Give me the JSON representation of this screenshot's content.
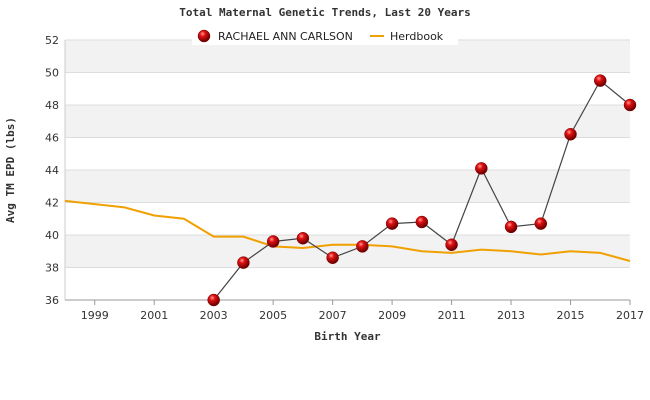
{
  "chart_data": {
    "type": "line",
    "title": "Total Maternal Genetic Trends, Last 20 Years",
    "xlabel": "Birth Year",
    "ylabel": "Avg TM EPD (lbs)",
    "xlim": [
      1998,
      2017
    ],
    "ylim": [
      36,
      52
    ],
    "x_ticks": [
      1999,
      2001,
      2003,
      2005,
      2007,
      2009,
      2011,
      2013,
      2015,
      2017
    ],
    "y_ticks": [
      36,
      38,
      40,
      42,
      44,
      46,
      48,
      50,
      52
    ],
    "grid": true,
    "legend_position": "top",
    "series": [
      {
        "name": "RACHAEL ANN CARLSON",
        "color": "#cc0000",
        "line_color": "#444444",
        "marker": "sphere",
        "x": [
          2003,
          2004,
          2005,
          2006,
          2007,
          2008,
          2009,
          2010,
          2011,
          2012,
          2013,
          2014,
          2015,
          2016,
          2017
        ],
        "y": [
          36.0,
          38.3,
          39.6,
          39.8,
          38.6,
          39.3,
          40.7,
          40.8,
          39.4,
          44.1,
          40.5,
          40.7,
          46.2,
          49.5,
          48.0
        ]
      },
      {
        "name": "Herdbook",
        "color": "#f0a000",
        "marker": "none",
        "x": [
          1998,
          1999,
          2000,
          2001,
          2002,
          2003,
          2004,
          2005,
          2006,
          2007,
          2008,
          2009,
          2010,
          2011,
          2012,
          2013,
          2014,
          2015,
          2016,
          2017
        ],
        "y": [
          42.1,
          41.9,
          41.7,
          41.2,
          41.0,
          39.9,
          39.9,
          39.3,
          39.2,
          39.4,
          39.4,
          39.3,
          39.0,
          38.9,
          39.1,
          39.0,
          38.8,
          39.0,
          38.9,
          38.4
        ]
      }
    ]
  }
}
